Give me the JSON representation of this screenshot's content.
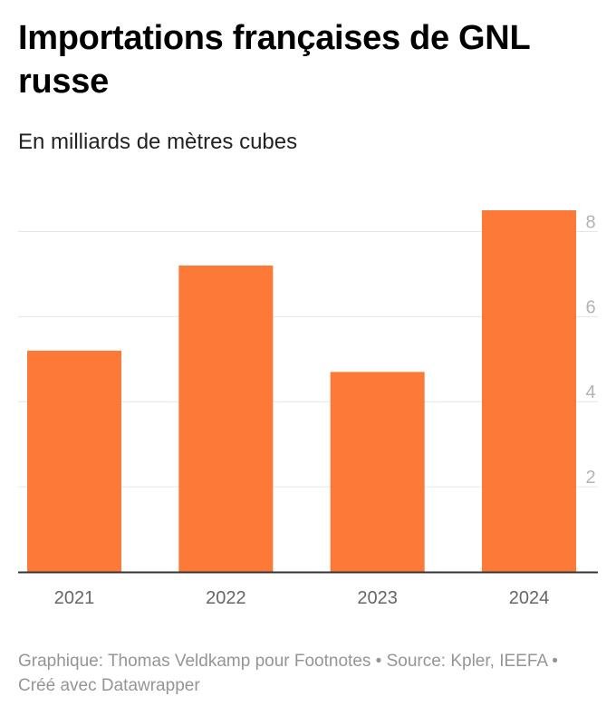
{
  "title": "Importations françaises de GNL russe",
  "subtitle": "En milliards de mètres cubes",
  "footer": "Graphique: Thomas Veldkamp pour Footnotes • Source: Kpler, IEEFA • Créé avec Datawrapper",
  "colors": {
    "bar": "#fd7937",
    "grid": "#e6e6e6",
    "axis": "#333333",
    "tick_text": "#b3b3b3",
    "category_text": "#666666"
  },
  "chart_data": {
    "type": "bar",
    "categories": [
      "2021",
      "2022",
      "2023",
      "2024"
    ],
    "values": [
      5.2,
      7.2,
      4.7,
      8.5
    ],
    "ylim": [
      0,
      8.5
    ],
    "yticks": [
      2,
      4,
      6,
      8
    ],
    "y_axis_position": "right",
    "grid": true,
    "xlabel": "",
    "ylabel": ""
  }
}
